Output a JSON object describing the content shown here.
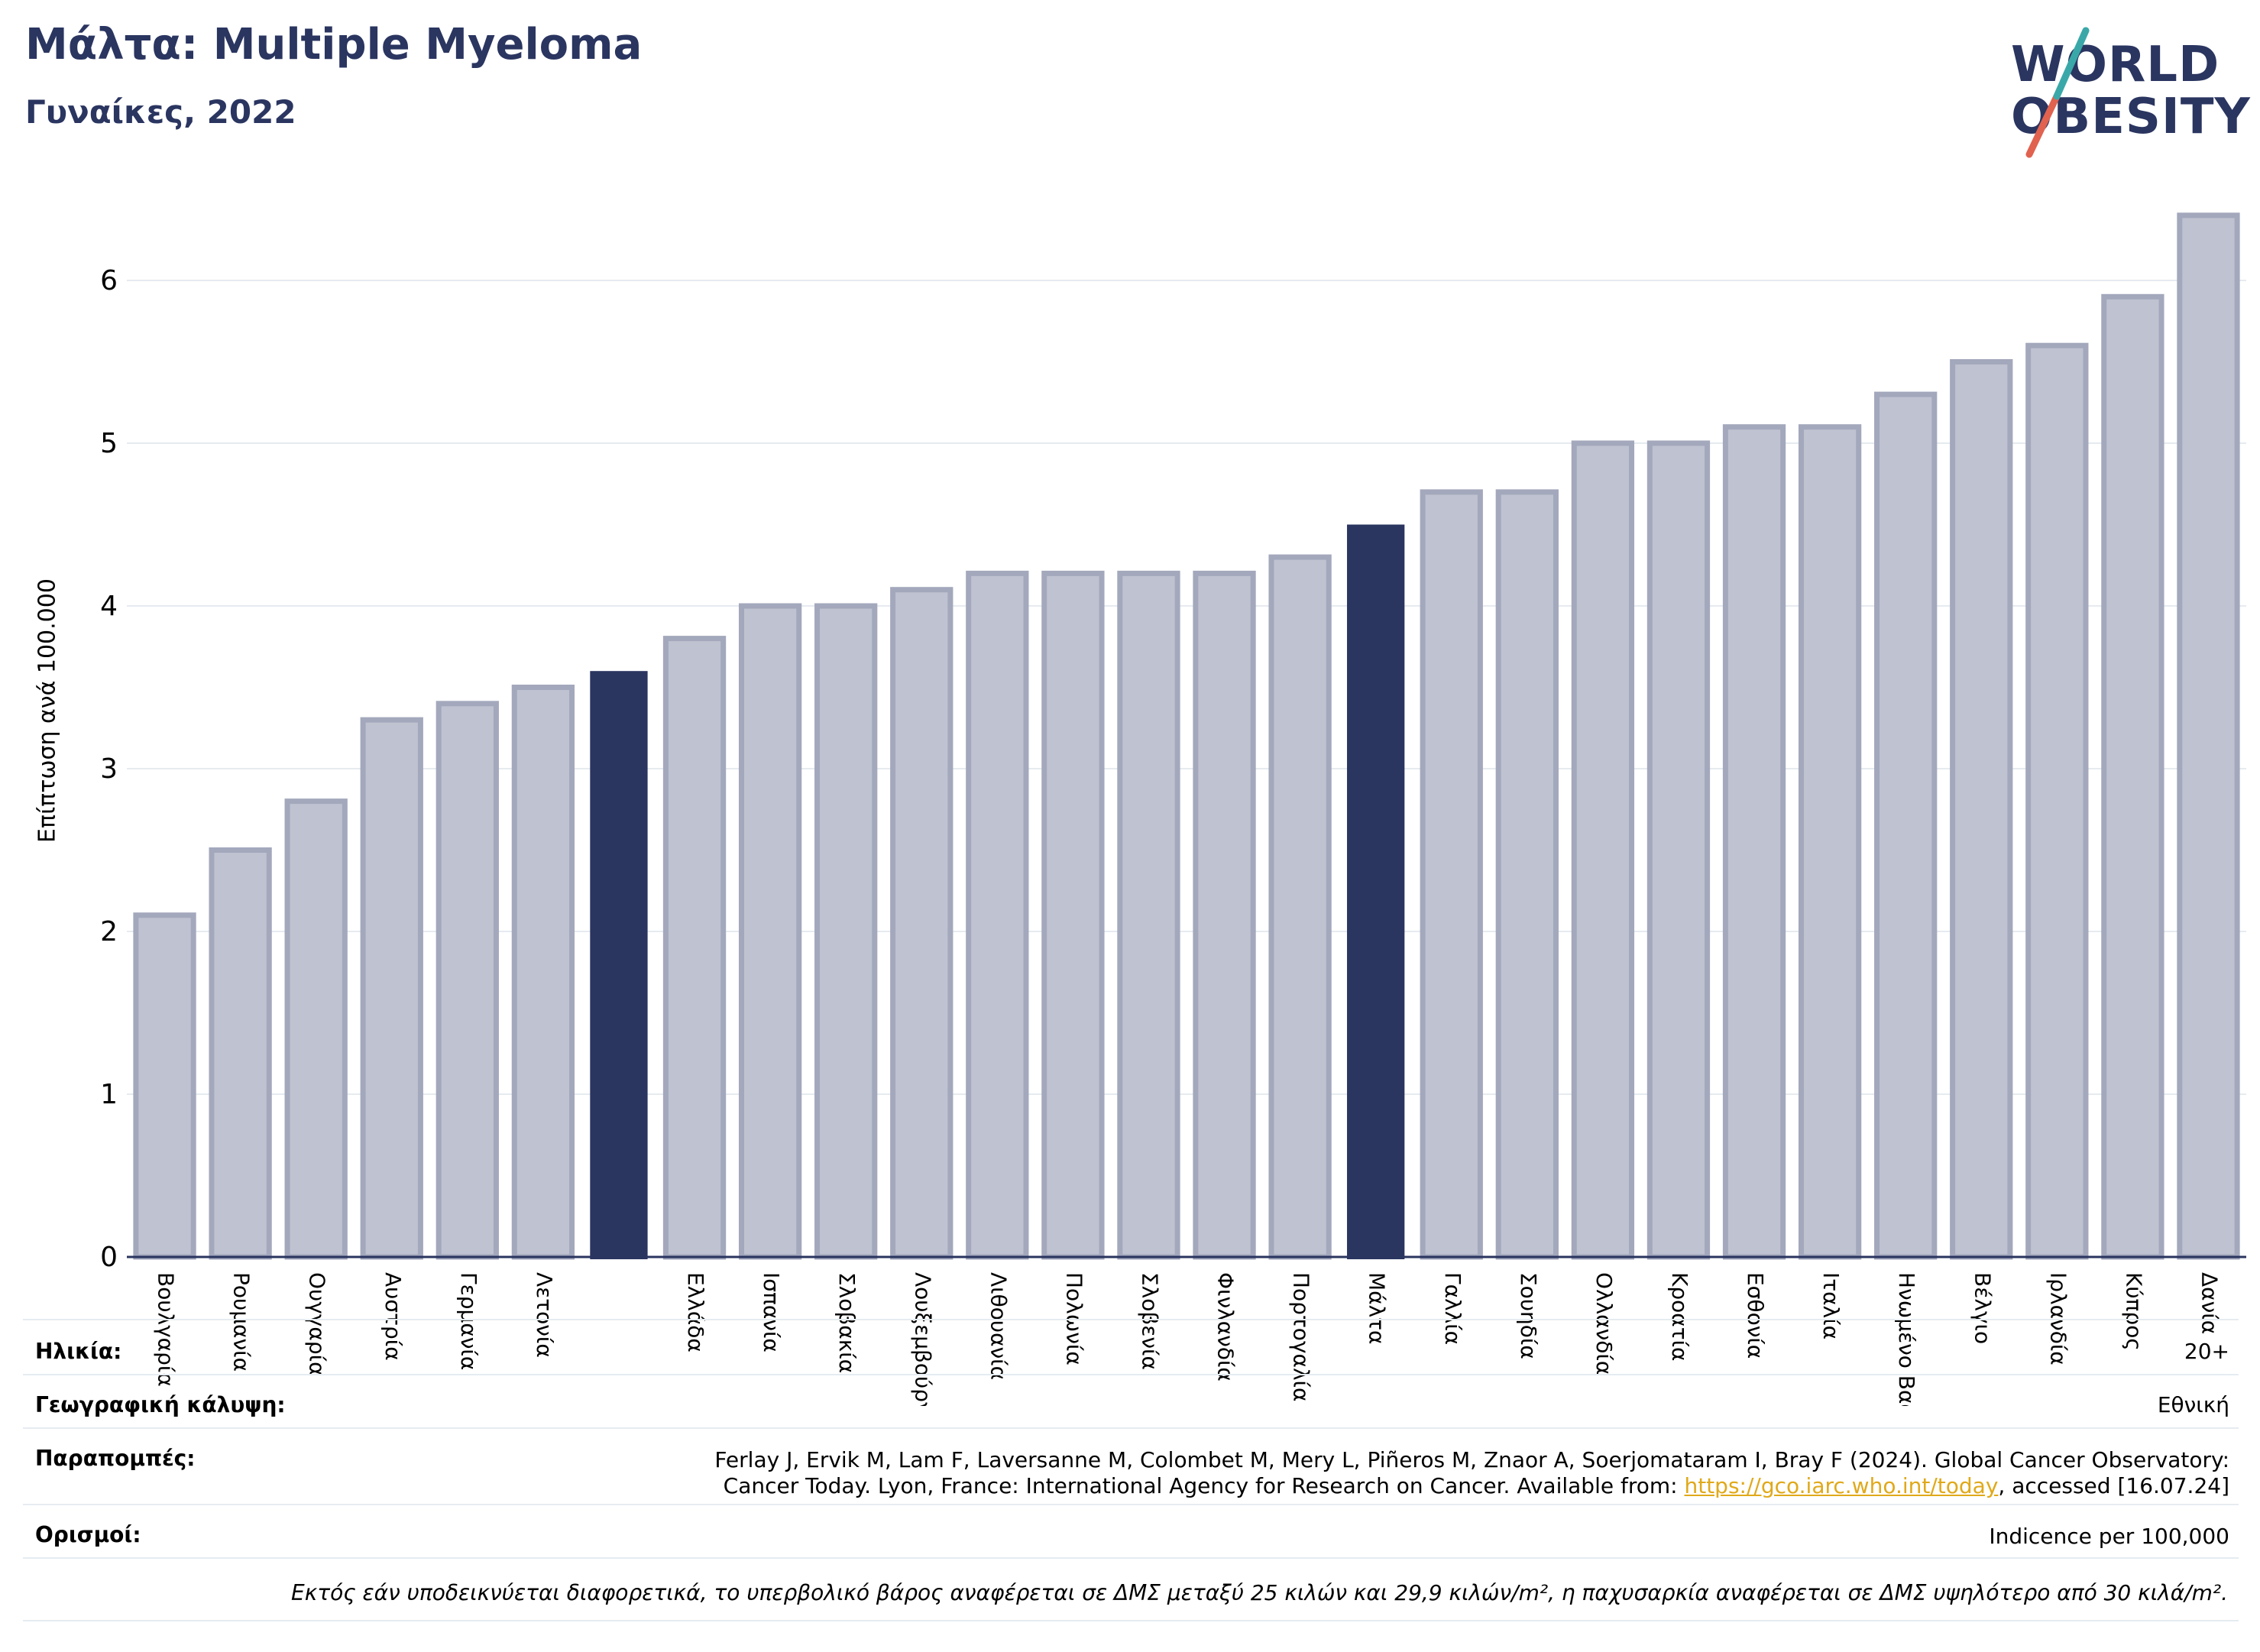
{
  "header": {
    "title": "Μάλτα: Multiple Myeloma",
    "subtitle": "Γυναίκες, 2022",
    "logo_line1": "WORLD",
    "logo_line2": "OBESITY"
  },
  "chart_data": {
    "type": "bar",
    "title": "Μάλτα: Multiple Myeloma",
    "subtitle": "Γυναίκες, 2022",
    "ylabel": "Επίπτωση ανά 100.000",
    "xlabel": "",
    "ylim": [
      0,
      6.5
    ],
    "yticks": [
      0,
      1,
      2,
      3,
      4,
      5,
      6
    ],
    "grid": true,
    "categories": [
      "Βουλγαρία",
      "Ρουμανία",
      "Ουγγαρία",
      "Αυστρία",
      "Γερμανία",
      "Λετονία",
      "",
      "Ελλάδα",
      "Ισπανία",
      "Σλοβακία",
      "Λουξεμβούργο",
      "Λιθουανία",
      "Πολωνία",
      "Σλοβενία",
      "Φινλανδία",
      "Πορτογαλία",
      "Μάλτα",
      "Γαλλία",
      "Σουηδία",
      "Ολλανδία",
      "Κροατία",
      "Εσθονία",
      "Ιταλία",
      "Ηνωμένο Βασίλειο",
      "Βέλγιο",
      "Ιρλανδία",
      "Κύπρος",
      "Δανία"
    ],
    "values": [
      2.1,
      2.5,
      2.8,
      3.3,
      3.4,
      3.5,
      3.6,
      3.8,
      4.0,
      4.0,
      4.1,
      4.2,
      4.2,
      4.2,
      4.2,
      4.3,
      4.5,
      4.7,
      4.7,
      5.0,
      5.0,
      5.1,
      5.1,
      5.3,
      5.5,
      5.6,
      5.9,
      6.4
    ],
    "highlighted": [
      6,
      16
    ],
    "colors": {
      "bar": "#bfc2d0",
      "bar_edge": "#a3a8bc",
      "highlight": "#2a3560",
      "axis": "#2a3560",
      "grid": "#e6ebf0"
    }
  },
  "info": {
    "age_label": "Ηλικία:",
    "age_value": "20+",
    "coverage_label": "Γεωγραφική κάλυψη:",
    "coverage_value": "Εθνική",
    "refs_label": "Παραπομπές:",
    "refs_line1": "Ferlay J, Ervik M, Lam F, Laversanne M, Colombet M, Mery L, Piñeros M, Znaor A, Soerjomataram I, Bray F (2024). Global Cancer Observatory:",
    "refs_line2_pre": "Cancer Today. Lyon, France: International Agency for Research on Cancer. Available from: ",
    "refs_link": "https://gco.iarc.who.int/today",
    "refs_line2_post": ", accessed [16.07.24]",
    "defs_label": "Ορισμοί:",
    "defs_value": "Indicence per 100,000",
    "footnote": "Εκτός εάν υποδεικνύεται διαφορετικά, το υπερβολικό βάρος αναφέρεται σε ΔΜΣ μεταξύ 25 κιλών και 29,9 κιλών/m², η παχυσαρκία αναφέρεται σε ΔΜΣ υψηλότερο από 30 κιλά/m²."
  }
}
